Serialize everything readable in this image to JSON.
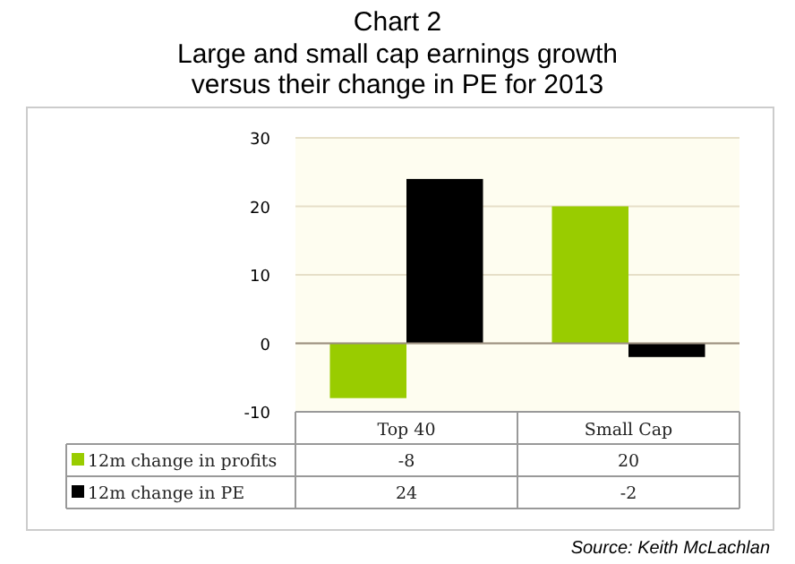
{
  "chart_data": {
    "type": "bar",
    "title": "Chart 2",
    "subtitle": "Large and small cap earnings growth versus their change in PE for 2013",
    "categories": [
      "Top 40",
      "Small Cap"
    ],
    "series": [
      {
        "name": "12m change in profits",
        "color": "#99cc00",
        "values": [
          -8,
          20
        ]
      },
      {
        "name": "12m change in PE",
        "color": "#000000",
        "values": [
          24,
          -2
        ]
      }
    ],
    "ylim": [
      -10,
      30
    ],
    "yticks": [
      -10,
      0,
      10,
      20,
      30
    ],
    "grid": "y",
    "legend": "bottom left",
    "data_labels": true,
    "annotations": [
      "Source: Keith McLachlan"
    ]
  }
}
